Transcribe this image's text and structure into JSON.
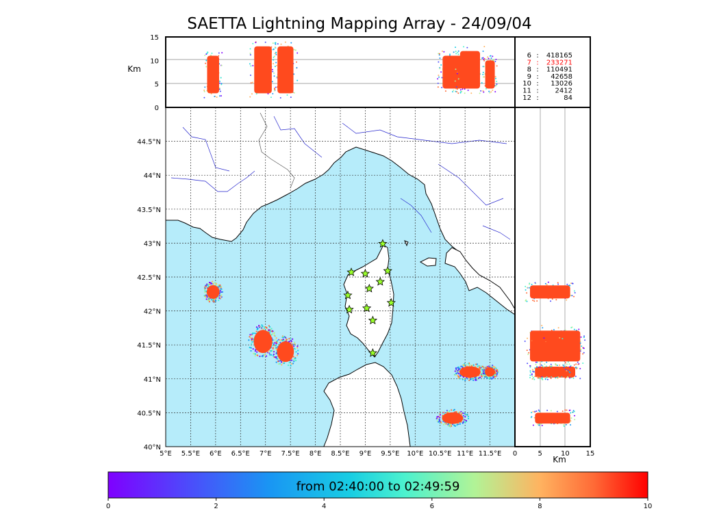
{
  "title": "SAETTA Lightning Mapping Array - 24/09/04",
  "colors": {
    "sea": "#b6ecfa",
    "land": "#ffffff",
    "rivers": "#2222cc",
    "storm_core": "#ff4a1e",
    "marker": "#9aff2a"
  },
  "chart_data": {
    "type": "scatter",
    "title": "SAETTA Lightning Mapping Array - 24/09/04",
    "map": {
      "lon_range": [
        5,
        12
      ],
      "lat_range": [
        40,
        45
      ],
      "lon_ticks": [
        "5°E",
        "5.5°E",
        "6°E",
        "6.5°E",
        "7°E",
        "7.5°E",
        "8°E",
        "8.5°E",
        "9°E",
        "9.5°E",
        "10°E",
        "10.5°E",
        "11°E",
        "11.5°E"
      ],
      "lat_ticks": [
        "40°N",
        "40.5°N",
        "41°N",
        "41.5°N",
        "42°N",
        "42.5°N",
        "43°N",
        "43.5°N",
        "44°N",
        "44.5°N"
      ],
      "grid": "dotted"
    },
    "altitude_panel": {
      "ylabel": "Km",
      "ylim": [
        0,
        15
      ],
      "yticks": [
        "0",
        "5",
        "10",
        "15"
      ],
      "xlabel": "Km",
      "xlim": [
        0,
        15
      ],
      "xticks": [
        "0",
        "5",
        "10",
        "15"
      ]
    },
    "counts_legend": [
      {
        "km": "6",
        "count": "418165",
        "color": "#000000"
      },
      {
        "km": "7",
        "count": "233271",
        "color": "#ff0000"
      },
      {
        "km": "8",
        "count": "110491",
        "color": "#000000"
      },
      {
        "km": "9",
        "count": "42658",
        "color": "#000000"
      },
      {
        "km": "10",
        "count": "13026",
        "color": "#000000"
      },
      {
        "km": "11",
        "count": "2412",
        "color": "#000000"
      },
      {
        "km": "12",
        "count": "84",
        "color": "#000000"
      }
    ],
    "colorbar": {
      "label": "from 02:40:00 to 02:49:59",
      "ticks": [
        "0",
        "2",
        "4",
        "6",
        "8",
        "10"
      ],
      "range": [
        0,
        10
      ],
      "colormap": "rainbow"
    },
    "stations": [
      [
        9.35,
        42.99
      ],
      [
        8.72,
        42.57
      ],
      [
        9.0,
        42.55
      ],
      [
        9.45,
        42.59
      ],
      [
        9.3,
        42.43
      ],
      [
        9.08,
        42.33
      ],
      [
        8.65,
        42.23
      ],
      [
        9.52,
        42.12
      ],
      [
        8.68,
        42.02
      ],
      [
        9.03,
        42.04
      ],
      [
        9.15,
        41.86
      ],
      [
        9.15,
        41.38
      ]
    ],
    "storms": [
      {
        "lon": 5.95,
        "lat": 42.28,
        "rlon": 0.15,
        "rlat": 0.12,
        "z": [
          2,
          12
        ]
      },
      {
        "lon": 6.95,
        "lat": 41.55,
        "rlon": 0.22,
        "rlat": 0.2,
        "z": [
          2,
          14
        ]
      },
      {
        "lon": 7.4,
        "lat": 41.4,
        "rlon": 0.2,
        "rlat": 0.18,
        "z": [
          2,
          14
        ]
      },
      {
        "lon": 10.75,
        "lat": 40.42,
        "rlon": 0.25,
        "rlat": 0.1,
        "z": [
          3,
          12
        ]
      },
      {
        "lon": 11.1,
        "lat": 41.1,
        "rlon": 0.25,
        "rlat": 0.1,
        "z": [
          3,
          13
        ]
      },
      {
        "lon": 11.5,
        "lat": 41.1,
        "rlon": 0.12,
        "rlat": 0.08,
        "z": [
          3,
          11
        ]
      }
    ]
  }
}
